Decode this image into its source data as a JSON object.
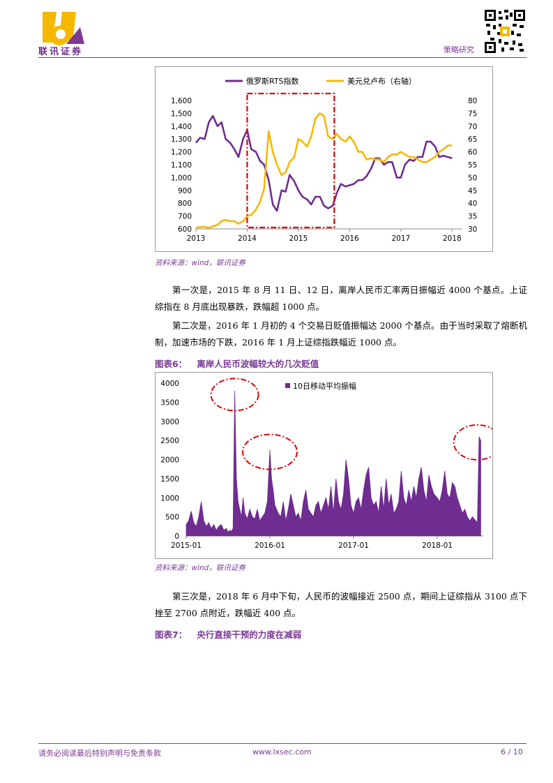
{
  "header": {
    "brand": "联讯证券",
    "section": "策略研究"
  },
  "chart1": {
    "chart_data": {
      "type": "line",
      "legend": [
        "俄罗斯RTS指数",
        "美元兑卢布（右轴）"
      ],
      "legend_position": "top",
      "x_ticks": [
        "2013",
        "2014",
        "2015",
        "2016",
        "2017",
        "2018"
      ],
      "y_left_ticks": [
        "600",
        "700",
        "800",
        "900",
        "1,000",
        "1,100",
        "1,200",
        "1,300",
        "1,400",
        "1,500",
        "1,600"
      ],
      "y_right_ticks": [
        "30",
        "35",
        "40",
        "45",
        "50",
        "55",
        "60",
        "65",
        "70",
        "75",
        "80"
      ],
      "y_left_range": [
        600,
        1600
      ],
      "y_right_range": [
        30,
        80
      ],
      "x_range": [
        2013.0,
        2018.2
      ],
      "series": [
        {
          "name": "俄罗斯RTS指数",
          "axis": "left",
          "color": "#6f2c91",
          "x": [
            2013.0,
            2013.08,
            2013.17,
            2013.25,
            2013.33,
            2013.42,
            2013.5,
            2013.58,
            2013.67,
            2013.75,
            2013.83,
            2013.92,
            2014.0,
            2014.08,
            2014.17,
            2014.25,
            2014.33,
            2014.42,
            2014.5,
            2014.58,
            2014.67,
            2014.75,
            2014.83,
            2014.92,
            2015.0,
            2015.08,
            2015.17,
            2015.25,
            2015.33,
            2015.42,
            2015.5,
            2015.58,
            2015.67,
            2015.75,
            2015.83,
            2015.92,
            2016.0,
            2016.08,
            2016.17,
            2016.25,
            2016.33,
            2016.42,
            2016.5,
            2016.58,
            2016.67,
            2016.75,
            2016.83,
            2016.92,
            2017.0,
            2017.08,
            2017.17,
            2017.25,
            2017.33,
            2017.42,
            2017.5,
            2017.58,
            2017.67,
            2017.75,
            2017.83,
            2017.92,
            2018.0
          ],
          "values": [
            1270,
            1310,
            1300,
            1430,
            1480,
            1400,
            1430,
            1300,
            1270,
            1220,
            1160,
            1300,
            1370,
            1220,
            1200,
            1130,
            1100,
            980,
            790,
            740,
            900,
            890,
            1020,
            970,
            900,
            850,
            830,
            790,
            850,
            850,
            780,
            760,
            780,
            880,
            950,
            930,
            940,
            950,
            980,
            980,
            1010,
            1070,
            1150,
            1150,
            1100,
            1120,
            1120,
            1000,
            1000,
            1100,
            1140,
            1130,
            1160,
            1160,
            1280,
            1280,
            1240,
            1160,
            1170,
            1160,
            1150
          ]
        },
        {
          "name": "美元兑卢布（右轴）",
          "axis": "right",
          "color": "#f5b800",
          "x": [
            2013.0,
            2013.08,
            2013.17,
            2013.25,
            2013.33,
            2013.42,
            2013.5,
            2013.58,
            2013.67,
            2013.75,
            2013.83,
            2013.92,
            2014.0,
            2014.08,
            2014.17,
            2014.25,
            2014.33,
            2014.42,
            2014.5,
            2014.58,
            2014.67,
            2014.75,
            2014.83,
            2014.92,
            2015.0,
            2015.08,
            2015.17,
            2015.25,
            2015.33,
            2015.42,
            2015.5,
            2015.58,
            2015.67,
            2015.75,
            2015.83,
            2015.92,
            2016.0,
            2016.08,
            2016.17,
            2016.25,
            2016.33,
            2016.42,
            2016.5,
            2016.58,
            2016.67,
            2016.75,
            2016.83,
            2016.92,
            2017.0,
            2017.08,
            2017.17,
            2017.25,
            2017.33,
            2017.42,
            2017.5,
            2017.58,
            2017.67,
            2017.75,
            2017.83,
            2017.92,
            2018.0
          ],
          "values": [
            30.5,
            30.7,
            30.8,
            30.4,
            31.0,
            31.5,
            33.0,
            33.5,
            33.0,
            33.0,
            32.0,
            33.0,
            35.0,
            35.5,
            37.5,
            40.5,
            45.5,
            68.0,
            60.0,
            55.0,
            51.0,
            52.0,
            56.0,
            58.0,
            65.0,
            64.0,
            62.0,
            66.0,
            73.0,
            75.0,
            74.0,
            66.0,
            65.0,
            67.0,
            65.0,
            64.0,
            66.0,
            64.0,
            60.0,
            60.0,
            57.0,
            57.5,
            57.0,
            57.0,
            56.0,
            58.0,
            59.0,
            59.0,
            60.0,
            59.0,
            58.0,
            58.0,
            57.0,
            56.0,
            56.0,
            57.0,
            58.0,
            60.0,
            61.0,
            62.5,
            62.5
          ]
        }
      ],
      "highlight_box": {
        "x_from": 2014.0,
        "x_to": 2015.7
      }
    }
  },
  "source1": "资料来源：wind，联讯证券",
  "para1": "第一次是，2015 年 8 月 11 日、12 日，离岸人民币汇率两日振幅近 4000 个基点。上证综指在 8 月底出现暴跌，跌幅超 1000 点。",
  "para2": "第二次是，2016 年 1 月初的 4 个交易日贬值振幅达 2000 个基点。由于当时采取了熔断机制，加速市场的下跌，2016 年 1 月上证综指跌幅近 1000 点。",
  "fig6": {
    "label": "图表6：",
    "title": "离岸人民币波幅较大的几次贬值"
  },
  "chart2": {
    "chart_data": {
      "type": "area",
      "legend": [
        "10日移动平均振幅"
      ],
      "legend_position": "top",
      "color": "#6f2c91",
      "x_ticks": [
        "2015-01",
        "2016-01",
        "2017-01",
        "2018-01"
      ],
      "y_ticks": [
        "0",
        "500",
        "1000",
        "1500",
        "2000",
        "2500",
        "3000",
        "3500",
        "4000"
      ],
      "y_range": [
        0,
        4000
      ],
      "x_range": [
        2015.0,
        2018.55
      ],
      "series": [
        {
          "name": "10日移动平均振幅",
          "x": [
            2015.0,
            2015.03,
            2015.06,
            2015.09,
            2015.12,
            2015.15,
            2015.18,
            2015.21,
            2015.24,
            2015.27,
            2015.3,
            2015.33,
            2015.36,
            2015.39,
            2015.42,
            2015.45,
            2015.48,
            2015.5,
            2015.52,
            2015.54,
            2015.56,
            2015.58,
            2015.6,
            2015.62,
            2015.64,
            2015.66,
            2015.68,
            2015.7,
            2015.73,
            2015.76,
            2015.79,
            2015.82,
            2015.85,
            2015.88,
            2015.91,
            2015.94,
            2015.97,
            2016.0,
            2016.02,
            2016.04,
            2016.06,
            2016.08,
            2016.1,
            2016.13,
            2016.16,
            2016.19,
            2016.22,
            2016.25,
            2016.28,
            2016.31,
            2016.34,
            2016.37,
            2016.4,
            2016.43,
            2016.46,
            2016.49,
            2016.52,
            2016.55,
            2016.58,
            2016.61,
            2016.64,
            2016.67,
            2016.7,
            2016.73,
            2016.76,
            2016.79,
            2016.82,
            2016.85,
            2016.88,
            2016.91,
            2016.94,
            2016.97,
            2017.0,
            2017.03,
            2017.06,
            2017.09,
            2017.12,
            2017.15,
            2017.18,
            2017.21,
            2017.24,
            2017.27,
            2017.3,
            2017.33,
            2017.36,
            2017.39,
            2017.42,
            2017.45,
            2017.48,
            2017.51,
            2017.54,
            2017.57,
            2017.6,
            2017.63,
            2017.66,
            2017.69,
            2017.72,
            2017.75,
            2017.78,
            2017.81,
            2017.84,
            2017.87,
            2017.9,
            2017.93,
            2017.96,
            2018.0,
            2018.03,
            2018.06,
            2018.09,
            2018.12,
            2018.15,
            2018.18,
            2018.21,
            2018.24,
            2018.27,
            2018.3,
            2018.33,
            2018.36,
            2018.39,
            2018.42,
            2018.44,
            2018.46,
            2018.48,
            2018.5,
            2018.52
          ],
          "values": [
            300,
            400,
            650,
            350,
            250,
            500,
            900,
            400,
            250,
            350,
            200,
            300,
            150,
            250,
            300,
            150,
            200,
            100,
            150,
            120,
            200,
            3800,
            1500,
            900,
            700,
            500,
            1000,
            600,
            450,
            700,
            500,
            450,
            700,
            400,
            500,
            600,
            900,
            2250,
            1500,
            1200,
            800,
            700,
            600,
            500,
            900,
            400,
            700,
            1100,
            800,
            500,
            600,
            400,
            900,
            1200,
            700,
            600,
            500,
            800,
            900,
            600,
            800,
            1000,
            700,
            1300,
            600,
            1500,
            900,
            700,
            1100,
            2000,
            1500,
            800,
            600,
            900,
            1000,
            700,
            1200,
            1600,
            1800,
            1000,
            800,
            900,
            600,
            1300,
            700,
            1500,
            800,
            1100,
            600,
            700,
            900,
            1700,
            1000,
            800,
            1200,
            900,
            1300,
            1000,
            1500,
            1800,
            1200,
            900,
            1600,
            1300,
            1100,
            1000,
            900,
            1200,
            1700,
            1100,
            1000,
            1400,
            1300,
            1000,
            800,
            600,
            700,
            500,
            400,
            500,
            450,
            400,
            350,
            2600,
            2500
          ]
        }
      ]
    }
  },
  "source2": "资料来源：wind，联讯证券",
  "para3": "第三次是，2018 年 6 月中下旬，人民币的波幅接近 2500 点，期间上证综指从 3100 点下挫至 2700 点附近，跌幅近 400 点。",
  "fig7": {
    "label": "图表7：",
    "title": "央行直接干预的力度在减弱"
  },
  "footer": {
    "disclaimer": "请务必阅读最后特别声明与免责条款",
    "url": "www.lxsec.com",
    "page": "6 / 10"
  }
}
